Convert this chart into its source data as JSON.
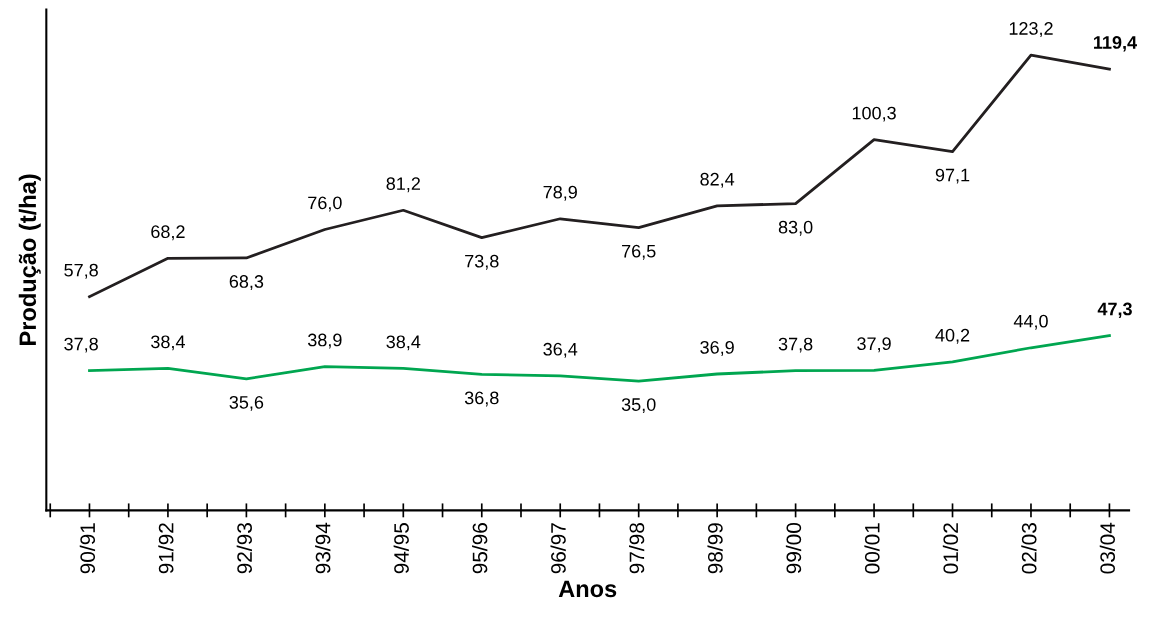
{
  "chart_data": {
    "type": "line",
    "xlabel": "Anos",
    "ylabel": "Produção (t/ha)",
    "categories": [
      "90/91",
      "91/92",
      "92/93",
      "93/94",
      "94/95",
      "95/96",
      "96/97",
      "97/98",
      "98/99",
      "99/00",
      "00/01",
      "01/02",
      "02/03",
      "03/04"
    ],
    "series": [
      {
        "color": "#231f20",
        "values": [
          57.8,
          68.2,
          68.3,
          76.0,
          81.2,
          73.8,
          78.9,
          76.5,
          82.4,
          83.0,
          100.3,
          97.1,
          123.2,
          119.4
        ],
        "value_labels": [
          "57,8",
          "68,2",
          "68,3",
          "76,0",
          "81,2",
          "73,8",
          "78,9",
          "76,5",
          "82,4",
          "83,0",
          "100,3",
          "97,1",
          "123,2",
          "119,4"
        ]
      },
      {
        "color": "#00a650",
        "values": [
          37.8,
          38.4,
          35.6,
          38.9,
          38.4,
          36.8,
          36.4,
          35.0,
          36.9,
          37.8,
          37.9,
          40.2,
          44.0,
          47.3
        ],
        "value_labels": [
          "37,8",
          "38,4",
          "35,6",
          "38,9",
          "38,4",
          "36,8",
          "36,4",
          "35,0",
          "36,9",
          "37,8",
          "37,9",
          "40,2",
          "44,0",
          "47,3"
        ]
      }
    ],
    "marker": "none",
    "line_style": "solid"
  }
}
